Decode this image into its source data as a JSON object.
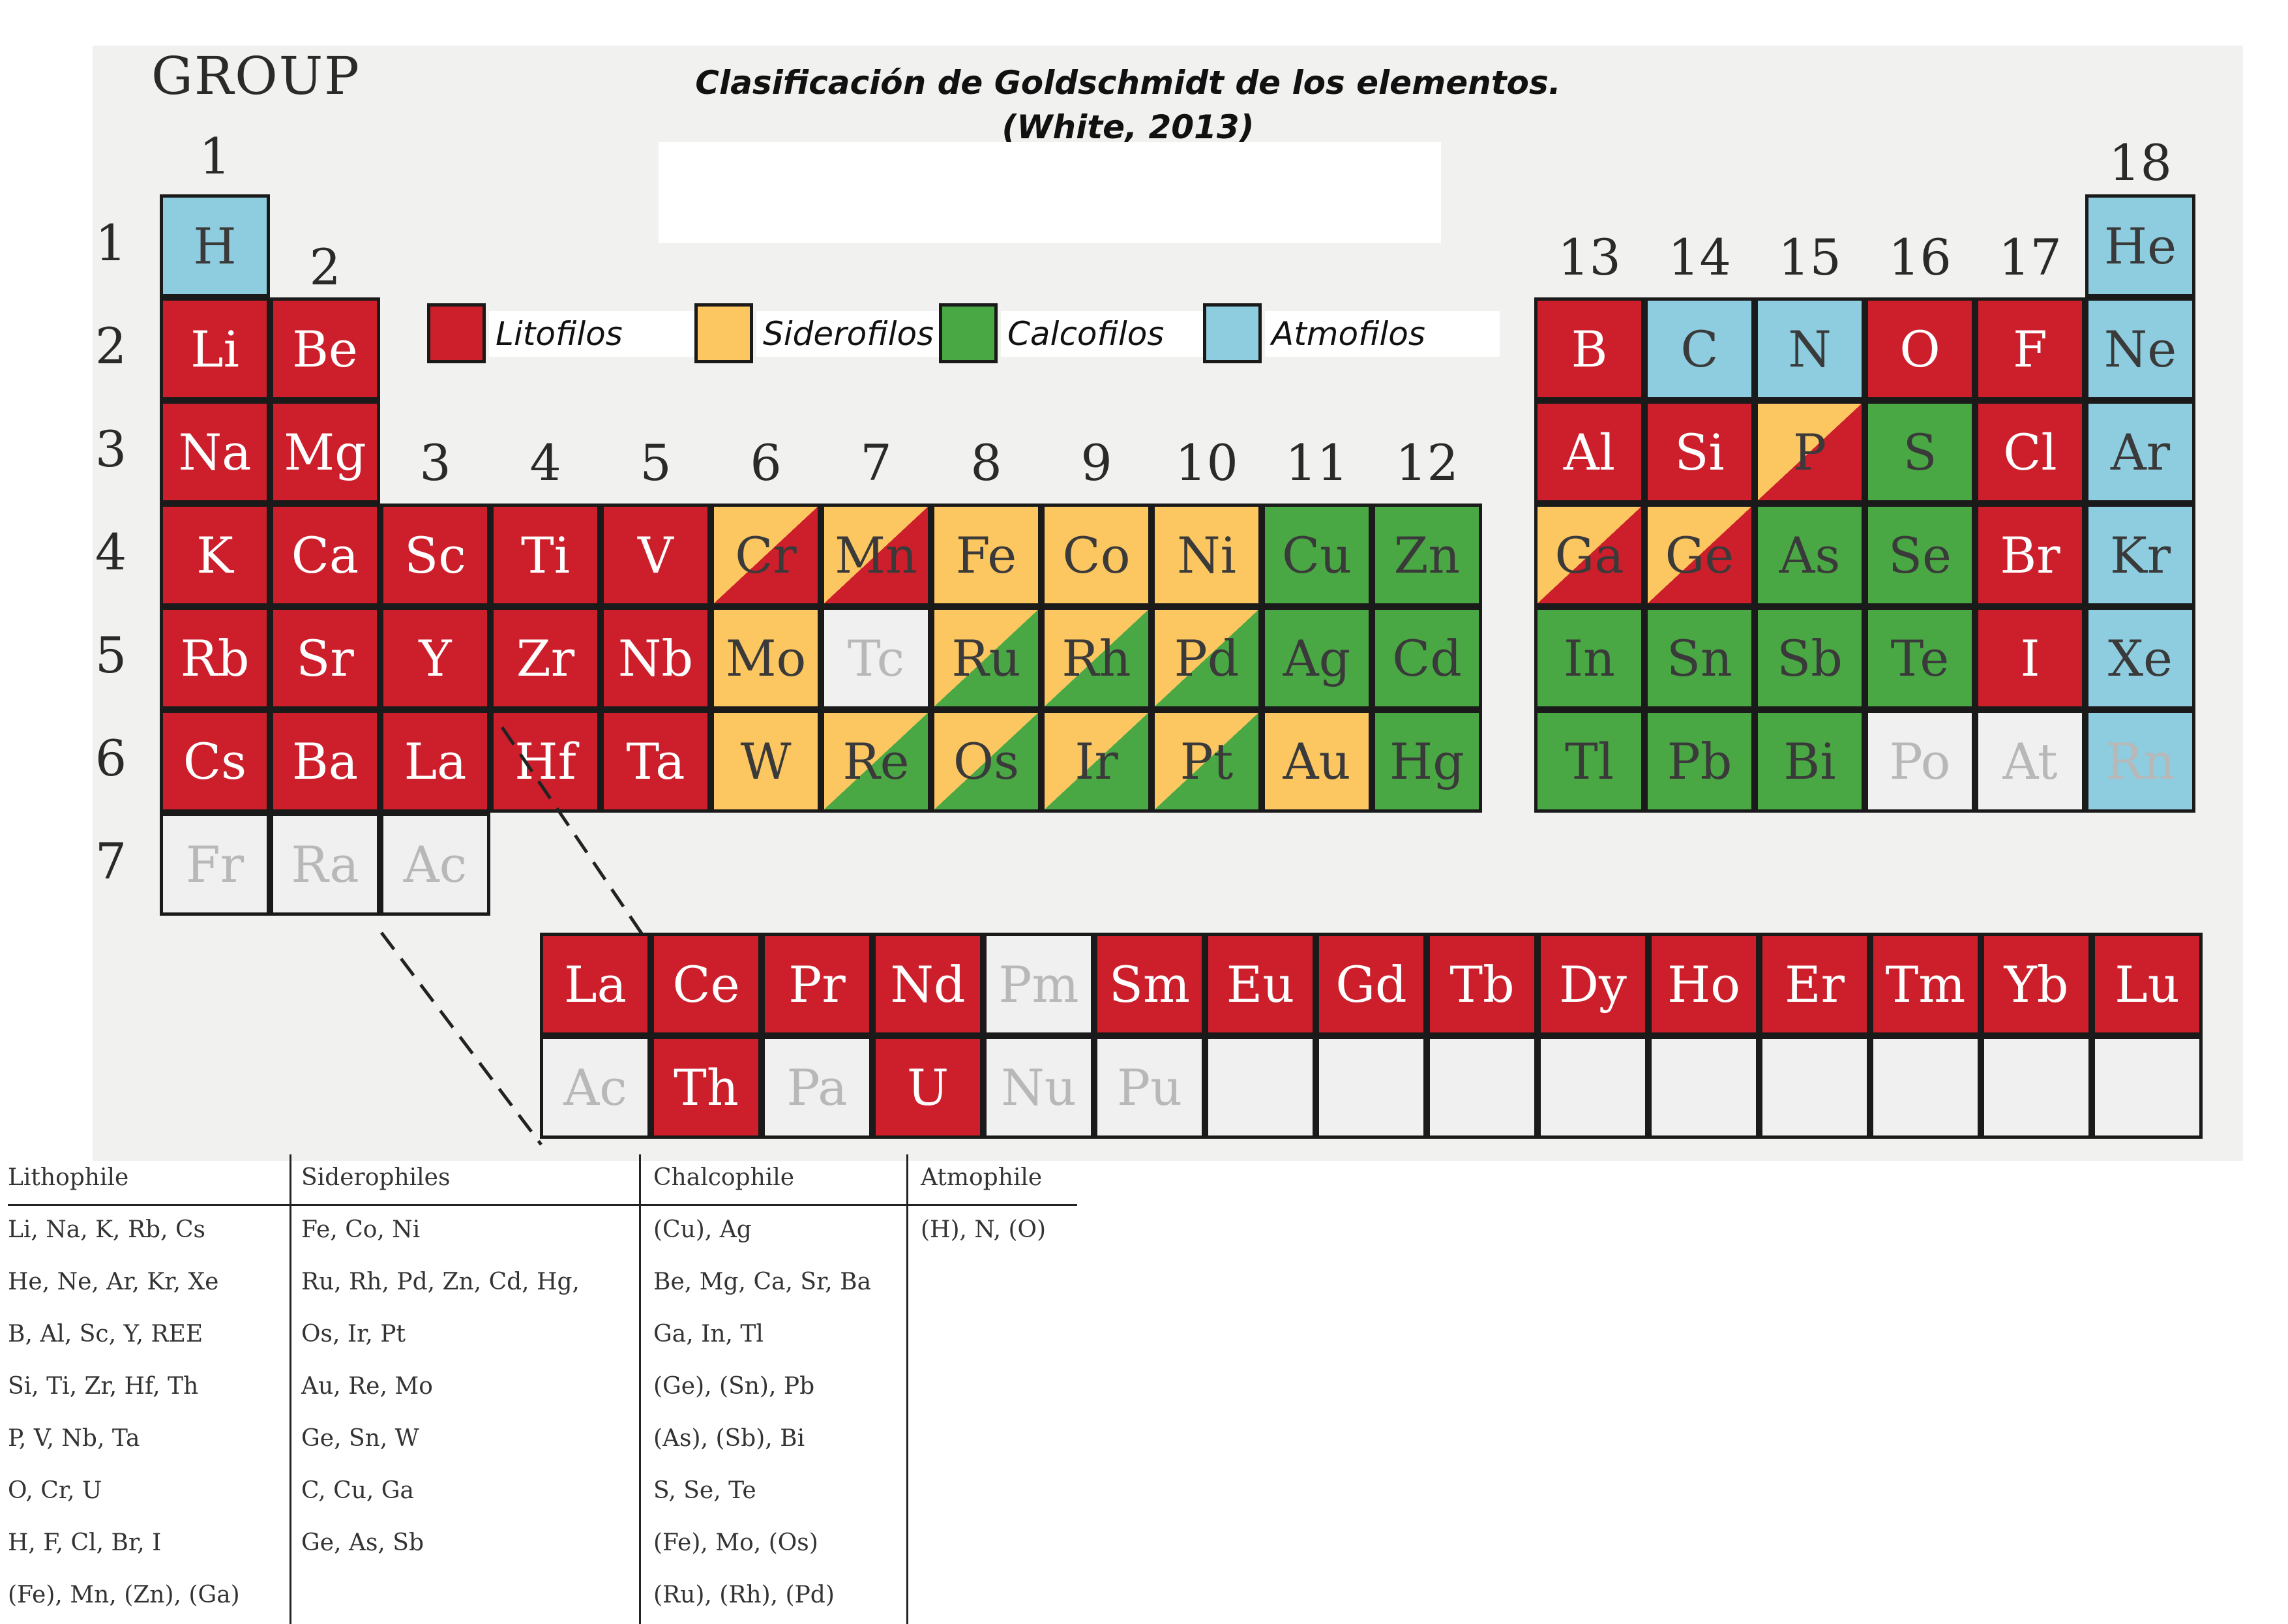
{
  "title": {
    "line1": "Clasificación de Goldschmidt de los elementos.",
    "line2": "(White, 2013)"
  },
  "group_label": "GROUP",
  "colors": {
    "lithophile": "#cc1f2b",
    "siderophile": "#fcc660",
    "chalcophile": "#4aa844",
    "atmophile": "#8dcddf",
    "unclassified": "#f0f0f0",
    "symbol_light": "#ffffff",
    "symbol_dark": "#3a3a3a",
    "symbol_faded": "#b8b8b8"
  },
  "legend": [
    {
      "label": "Litofilos",
      "class": "L"
    },
    {
      "label": "Siderofilos",
      "class": "S"
    },
    {
      "label": "Calcofilos",
      "class": "C"
    },
    {
      "label": "Atmofilos",
      "class": "A"
    }
  ],
  "group_numbers": [
    "1",
    "2",
    "3",
    "4",
    "5",
    "6",
    "7",
    "8",
    "9",
    "10",
    "11",
    "12",
    "13",
    "14",
    "15",
    "16",
    "17",
    "18"
  ],
  "period_numbers": [
    "1",
    "2",
    "3",
    "4",
    "5",
    "6",
    "7"
  ],
  "elements": [
    {
      "s": "H",
      "p": 1,
      "g": 1,
      "c": "A"
    },
    {
      "s": "He",
      "p": 1,
      "g": 18,
      "c": "A"
    },
    {
      "s": "Li",
      "p": 2,
      "g": 1,
      "c": "L"
    },
    {
      "s": "Be",
      "p": 2,
      "g": 2,
      "c": "L"
    },
    {
      "s": "B",
      "p": 2,
      "g": 13,
      "c": "L"
    },
    {
      "s": "C",
      "p": 2,
      "g": 14,
      "c": "A"
    },
    {
      "s": "N",
      "p": 2,
      "g": 15,
      "c": "A"
    },
    {
      "s": "O",
      "p": 2,
      "g": 16,
      "c": "L"
    },
    {
      "s": "F",
      "p": 2,
      "g": 17,
      "c": "L"
    },
    {
      "s": "Ne",
      "p": 2,
      "g": 18,
      "c": "A"
    },
    {
      "s": "Na",
      "p": 3,
      "g": 1,
      "c": "L"
    },
    {
      "s": "Mg",
      "p": 3,
      "g": 2,
      "c": "L"
    },
    {
      "s": "Al",
      "p": 3,
      "g": 13,
      "c": "L"
    },
    {
      "s": "Si",
      "p": 3,
      "g": 14,
      "c": "L"
    },
    {
      "s": "P",
      "p": 3,
      "g": 15,
      "c": "L",
      "c2": "S"
    },
    {
      "s": "S",
      "p": 3,
      "g": 16,
      "c": "C"
    },
    {
      "s": "Cl",
      "p": 3,
      "g": 17,
      "c": "L"
    },
    {
      "s": "Ar",
      "p": 3,
      "g": 18,
      "c": "A"
    },
    {
      "s": "K",
      "p": 4,
      "g": 1,
      "c": "L"
    },
    {
      "s": "Ca",
      "p": 4,
      "g": 2,
      "c": "L"
    },
    {
      "s": "Sc",
      "p": 4,
      "g": 3,
      "c": "L"
    },
    {
      "s": "Ti",
      "p": 4,
      "g": 4,
      "c": "L"
    },
    {
      "s": "V",
      "p": 4,
      "g": 5,
      "c": "L"
    },
    {
      "s": "Cr",
      "p": 4,
      "g": 6,
      "c": "L",
      "c2": "S"
    },
    {
      "s": "Mn",
      "p": 4,
      "g": 7,
      "c": "L",
      "c2": "S"
    },
    {
      "s": "Fe",
      "p": 4,
      "g": 8,
      "c": "S"
    },
    {
      "s": "Co",
      "p": 4,
      "g": 9,
      "c": "S"
    },
    {
      "s": "Ni",
      "p": 4,
      "g": 10,
      "c": "S"
    },
    {
      "s": "Cu",
      "p": 4,
      "g": 11,
      "c": "C"
    },
    {
      "s": "Zn",
      "p": 4,
      "g": 12,
      "c": "C"
    },
    {
      "s": "Ga",
      "p": 4,
      "g": 13,
      "c": "L",
      "c2": "S"
    },
    {
      "s": "Ge",
      "p": 4,
      "g": 14,
      "c": "L",
      "c2": "S"
    },
    {
      "s": "As",
      "p": 4,
      "g": 15,
      "c": "C"
    },
    {
      "s": "Se",
      "p": 4,
      "g": 16,
      "c": "C"
    },
    {
      "s": "Br",
      "p": 4,
      "g": 17,
      "c": "L"
    },
    {
      "s": "Kr",
      "p": 4,
      "g": 18,
      "c": "A"
    },
    {
      "s": "Rb",
      "p": 5,
      "g": 1,
      "c": "L"
    },
    {
      "s": "Sr",
      "p": 5,
      "g": 2,
      "c": "L"
    },
    {
      "s": "Y",
      "p": 5,
      "g": 3,
      "c": "L"
    },
    {
      "s": "Zr",
      "p": 5,
      "g": 4,
      "c": "L"
    },
    {
      "s": "Nb",
      "p": 5,
      "g": 5,
      "c": "L"
    },
    {
      "s": "Mo",
      "p": 5,
      "g": 6,
      "c": "S"
    },
    {
      "s": "Tc",
      "p": 5,
      "g": 7,
      "c": "U"
    },
    {
      "s": "Ru",
      "p": 5,
      "g": 8,
      "c": "C",
      "c2": "S"
    },
    {
      "s": "Rh",
      "p": 5,
      "g": 9,
      "c": "C",
      "c2": "S"
    },
    {
      "s": "Pd",
      "p": 5,
      "g": 10,
      "c": "C",
      "c2": "S"
    },
    {
      "s": "Ag",
      "p": 5,
      "g": 11,
      "c": "C"
    },
    {
      "s": "Cd",
      "p": 5,
      "g": 12,
      "c": "C"
    },
    {
      "s": "In",
      "p": 5,
      "g": 13,
      "c": "C"
    },
    {
      "s": "Sn",
      "p": 5,
      "g": 14,
      "c": "C"
    },
    {
      "s": "Sb",
      "p": 5,
      "g": 15,
      "c": "C"
    },
    {
      "s": "Te",
      "p": 5,
      "g": 16,
      "c": "C"
    },
    {
      "s": "I",
      "p": 5,
      "g": 17,
      "c": "L"
    },
    {
      "s": "Xe",
      "p": 5,
      "g": 18,
      "c": "A"
    },
    {
      "s": "Cs",
      "p": 6,
      "g": 1,
      "c": "L"
    },
    {
      "s": "Ba",
      "p": 6,
      "g": 2,
      "c": "L"
    },
    {
      "s": "La",
      "p": 6,
      "g": 3,
      "c": "L"
    },
    {
      "s": "Hf",
      "p": 6,
      "g": 4,
      "c": "L"
    },
    {
      "s": "Ta",
      "p": 6,
      "g": 5,
      "c": "L"
    },
    {
      "s": "W",
      "p": 6,
      "g": 6,
      "c": "S"
    },
    {
      "s": "Re",
      "p": 6,
      "g": 7,
      "c": "C",
      "c2": "S"
    },
    {
      "s": "Os",
      "p": 6,
      "g": 8,
      "c": "C",
      "c2": "S"
    },
    {
      "s": "Ir",
      "p": 6,
      "g": 9,
      "c": "C",
      "c2": "S"
    },
    {
      "s": "Pt",
      "p": 6,
      "g": 10,
      "c": "C",
      "c2": "S"
    },
    {
      "s": "Au",
      "p": 6,
      "g": 11,
      "c": "S"
    },
    {
      "s": "Hg",
      "p": 6,
      "g": 12,
      "c": "C"
    },
    {
      "s": "Tl",
      "p": 6,
      "g": 13,
      "c": "C"
    },
    {
      "s": "Pb",
      "p": 6,
      "g": 14,
      "c": "C"
    },
    {
      "s": "Bi",
      "p": 6,
      "g": 15,
      "c": "C"
    },
    {
      "s": "Po",
      "p": 6,
      "g": 16,
      "c": "U"
    },
    {
      "s": "At",
      "p": 6,
      "g": 17,
      "c": "U"
    },
    {
      "s": "Rn",
      "p": 6,
      "g": 18,
      "c": "A",
      "faded": true
    },
    {
      "s": "Fr",
      "p": 7,
      "g": 1,
      "c": "U"
    },
    {
      "s": "Ra",
      "p": 7,
      "g": 2,
      "c": "U"
    },
    {
      "s": "Ac",
      "p": 7,
      "g": 3,
      "c": "U"
    }
  ],
  "f_block": [
    [
      {
        "s": "La",
        "c": "L"
      },
      {
        "s": "Ce",
        "c": "L"
      },
      {
        "s": "Pr",
        "c": "L"
      },
      {
        "s": "Nd",
        "c": "L"
      },
      {
        "s": "Pm",
        "c": "U"
      },
      {
        "s": "Sm",
        "c": "L"
      },
      {
        "s": "Eu",
        "c": "L"
      },
      {
        "s": "Gd",
        "c": "L"
      },
      {
        "s": "Tb",
        "c": "L"
      },
      {
        "s": "Dy",
        "c": "L"
      },
      {
        "s": "Ho",
        "c": "L"
      },
      {
        "s": "Er",
        "c": "L"
      },
      {
        "s": "Tm",
        "c": "L"
      },
      {
        "s": "Yb",
        "c": "L"
      },
      {
        "s": "Lu",
        "c": "L"
      }
    ],
    [
      {
        "s": "Ac",
        "c": "U"
      },
      {
        "s": "Th",
        "c": "L"
      },
      {
        "s": "Pa",
        "c": "U"
      },
      {
        "s": "U",
        "c": "L"
      },
      {
        "s": "Nu",
        "c": "U"
      },
      {
        "s": "Pu",
        "c": "U"
      },
      {
        "s": "",
        "c": "U"
      },
      {
        "s": "",
        "c": "U"
      },
      {
        "s": "",
        "c": "U"
      },
      {
        "s": "",
        "c": "U"
      },
      {
        "s": "",
        "c": "U"
      },
      {
        "s": "",
        "c": "U"
      },
      {
        "s": "",
        "c": "U"
      },
      {
        "s": "",
        "c": "U"
      },
      {
        "s": "",
        "c": "U"
      }
    ]
  ],
  "table": {
    "columns": [
      {
        "header": "Lithophile",
        "rows": [
          "Li, Na, K, Rb, Cs",
          "He, Ne, Ar, Kr, Xe",
          "B, Al, Sc, Y, REE",
          "Si, Ti, Zr, Hf, Th",
          "P, V, Nb, Ta",
          "O, Cr, U",
          "H, F, Cl, Br, I",
          "(Fe), Mn, (Zn), (Ga)"
        ]
      },
      {
        "header": "Siderophiles",
        "rows": [
          "Fe, Co, Ni",
          "Ru, Rh, Pd, Zn, Cd, Hg,",
          "Os, Ir, Pt",
          "Au, Re, Mo",
          "Ge, Sn, W",
          "C, Cu, Ga",
          "Ge, As, Sb"
        ]
      },
      {
        "header": "Chalcophile",
        "rows": [
          "(Cu), Ag",
          "Be, Mg, Ca, Sr, Ba",
          "Ga, In, Tl",
          "(Ge), (Sn), Pb",
          "(As), (Sb), Bi",
          "S, Se, Te",
          "(Fe), Mo, (Os)",
          "(Ru), (Rh), (Pd)"
        ]
      },
      {
        "header": "Atmophile",
        "rows": [
          "(H), N, (O)"
        ]
      }
    ]
  }
}
